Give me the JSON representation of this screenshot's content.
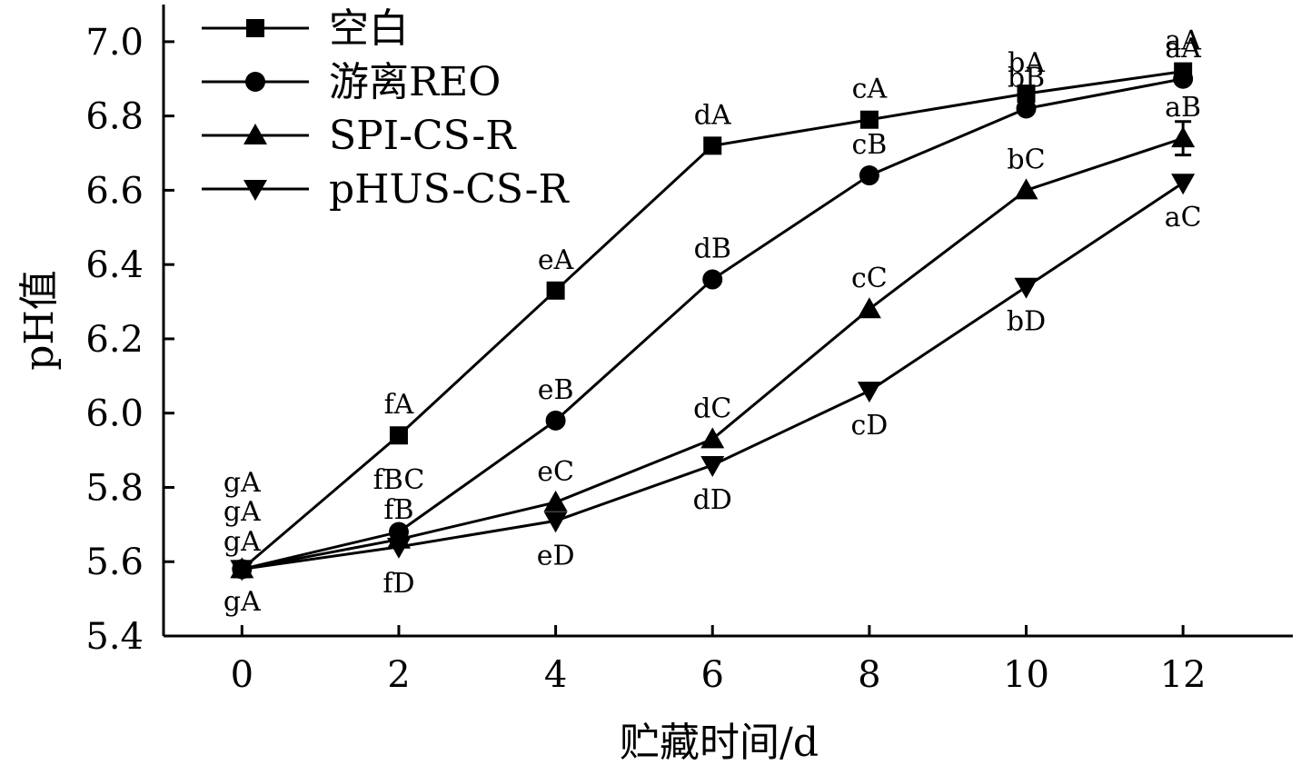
{
  "chart_data": {
    "type": "line",
    "title": "",
    "xlabel": "贮藏时间/d",
    "ylabel": "pH值",
    "x": [
      0,
      2,
      4,
      6,
      8,
      10,
      12
    ],
    "xlim": [
      -1,
      13.4
    ],
    "ylim": [
      5.4,
      7.1
    ],
    "yticks": [
      "5.4",
      "5.6",
      "5.8",
      "6.0",
      "6.2",
      "6.4",
      "6.6",
      "6.8",
      "7.0"
    ],
    "xticks": [
      "0",
      "2",
      "4",
      "6",
      "8",
      "10",
      "12"
    ],
    "grid": false,
    "legend_position": "top-left",
    "line_color": "#000000",
    "series": [
      {
        "name": "空白",
        "marker": "square",
        "values": [
          5.58,
          5.94,
          6.33,
          6.72,
          6.79,
          6.86,
          6.92
        ],
        "labels": [
          "gA",
          "fA",
          "eA",
          "dA",
          "cA",
          "bA",
          "aA"
        ]
      },
      {
        "name": "游离REO",
        "marker": "circle",
        "values": [
          5.58,
          5.68,
          5.98,
          6.36,
          6.64,
          6.82,
          6.9
        ],
        "labels": [
          "gA",
          "fBC",
          "eB",
          "dB",
          "cB",
          "bB",
          "aA"
        ]
      },
      {
        "name": "SPI-CS-R",
        "marker": "triangle-up",
        "values": [
          5.58,
          5.66,
          5.76,
          5.93,
          6.28,
          6.6,
          6.74
        ],
        "labels": [
          "gA",
          "fB",
          "eC",
          "dC",
          "cC",
          "bC",
          "aB"
        ],
        "error": [
          0,
          0,
          0,
          0,
          0,
          0,
          0.045
        ]
      },
      {
        "name": "pHUS-CS-R",
        "marker": "triangle-down",
        "values": [
          5.58,
          5.64,
          5.71,
          5.86,
          6.06,
          6.34,
          6.62
        ],
        "labels": [
          "gA",
          "fD",
          "eD",
          "dD",
          "cD",
          "bD",
          "aC"
        ]
      }
    ]
  }
}
